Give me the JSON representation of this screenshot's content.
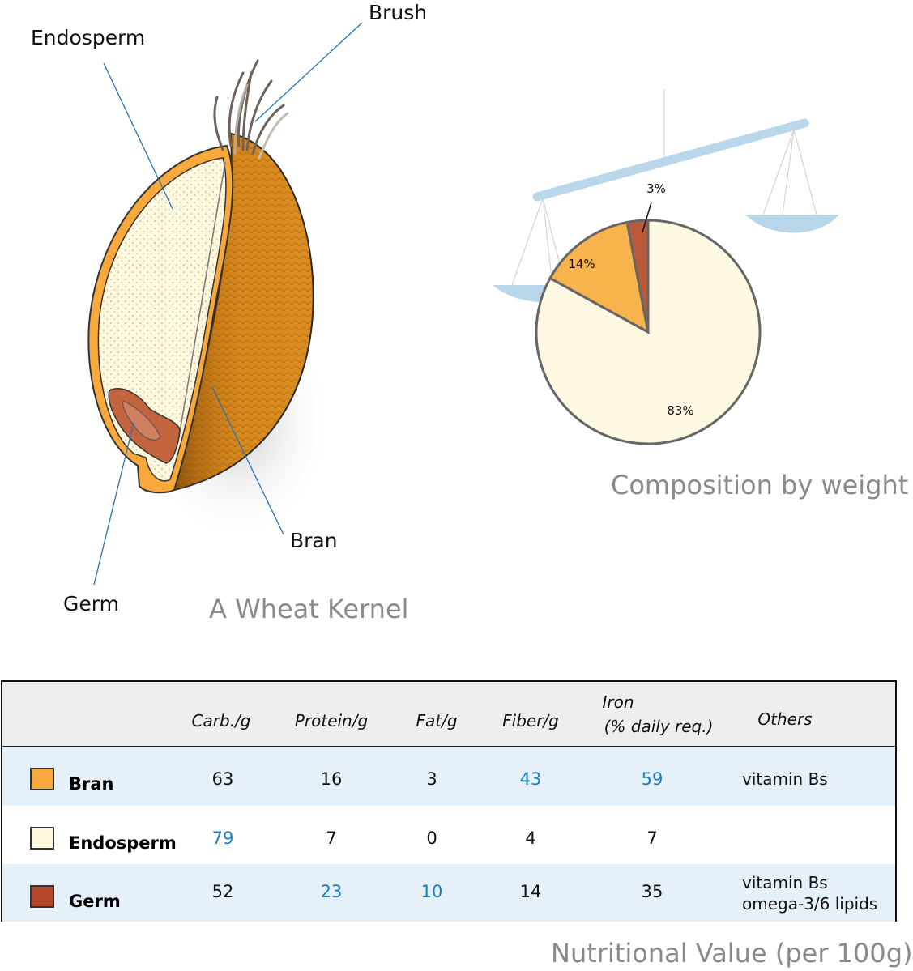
{
  "kernel": {
    "title": "A Wheat Kernel",
    "labels": {
      "endosperm": "Endosperm",
      "brush": "Brush",
      "bran": "Bran",
      "germ": "Germ"
    }
  },
  "composition": {
    "title": "Composition by weight",
    "chart_data": {
      "type": "pie",
      "categories": [
        "Endosperm",
        "Bran",
        "Germ"
      ],
      "values": [
        83,
        14,
        3
      ],
      "labels": [
        "83%",
        "14%",
        "3%"
      ],
      "colors": [
        "#fdf8e1",
        "#f9b34d",
        "#bb5a3a"
      ]
    }
  },
  "nutrition": {
    "title": "Nutritional Value (per 100g)",
    "headers": [
      "Carb./g",
      "Protein/g",
      "Fat/g",
      "Fiber/g",
      "Iron",
      "(% daily req.)",
      "Others"
    ],
    "highlight_color": "#1a7fc1",
    "rows": [
      {
        "name": "Bran",
        "color": "#f9a93b",
        "values": [
          "63",
          "16",
          "3",
          "43",
          "59"
        ],
        "highlight": [
          false,
          false,
          false,
          true,
          true
        ],
        "others": [
          "vitamin Bs"
        ]
      },
      {
        "name": "Endosperm",
        "color": "#fdf8dc",
        "values": [
          "79",
          "7",
          "0",
          "4",
          "7"
        ],
        "highlight": [
          true,
          false,
          false,
          false,
          false
        ],
        "others": []
      },
      {
        "name": "Germ",
        "color": "#b8472a",
        "values": [
          "52",
          "23",
          "10",
          "14",
          "35"
        ],
        "highlight": [
          false,
          true,
          true,
          false,
          false
        ],
        "others": [
          "vitamin Bs",
          "omega-3/6 lipids"
        ]
      }
    ]
  }
}
